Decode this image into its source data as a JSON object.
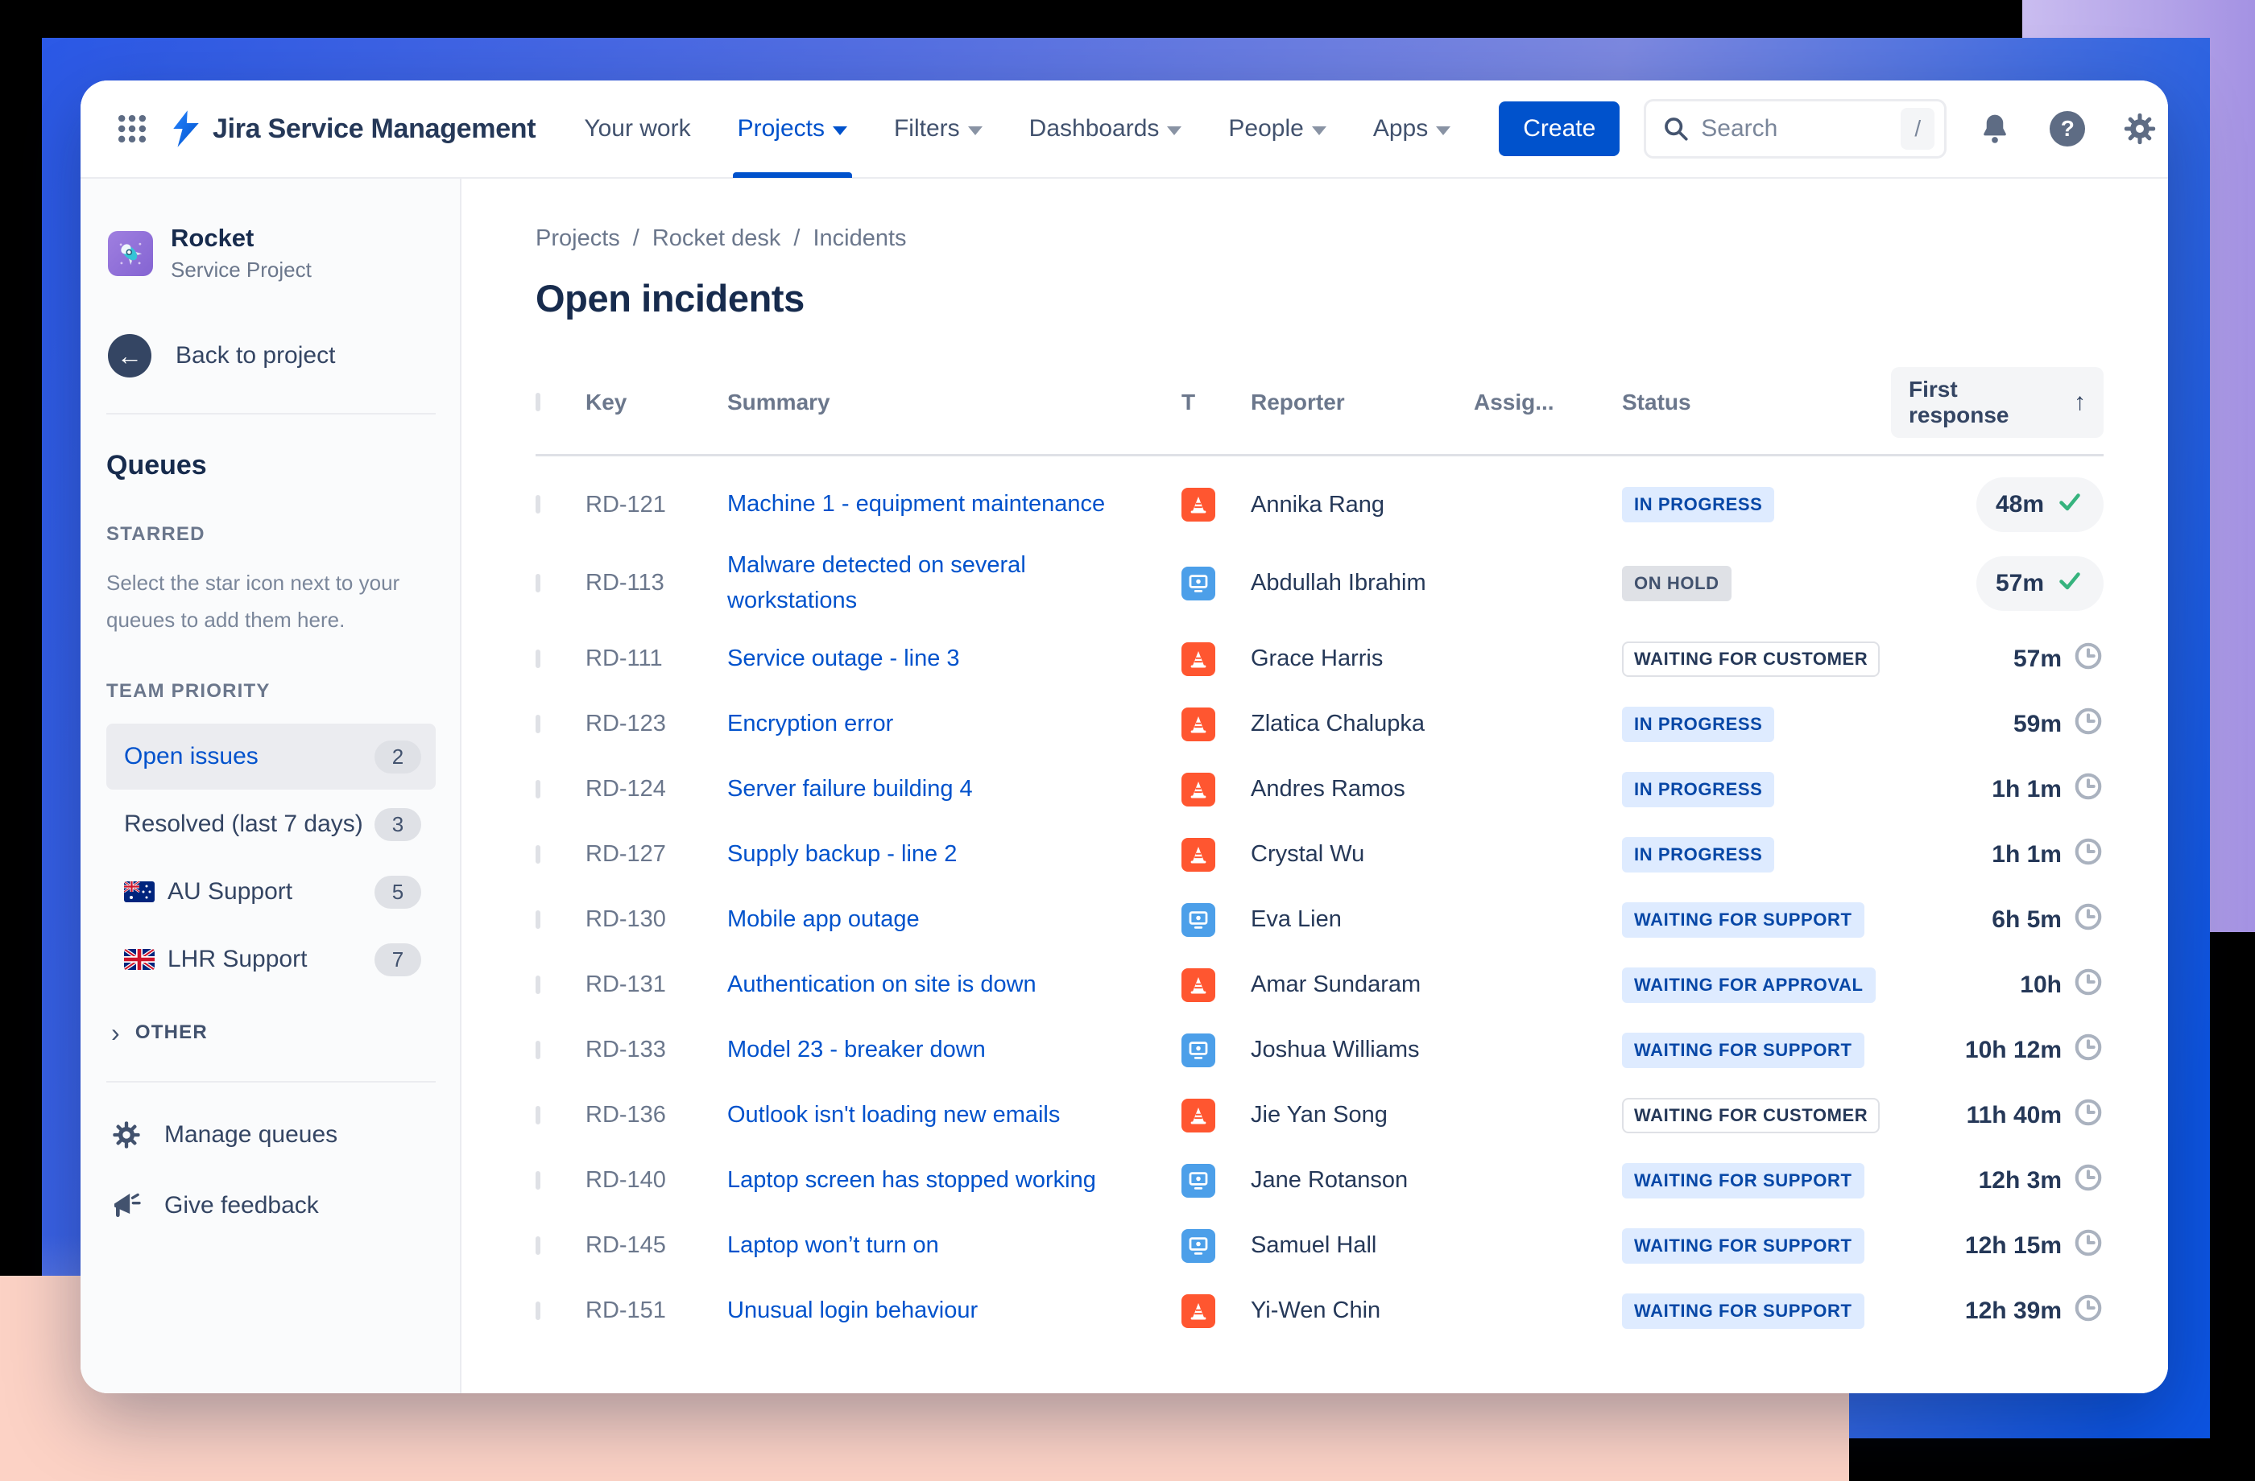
{
  "nav": {
    "logo_text": "Jira Service Management",
    "items": [
      {
        "label": "Your work",
        "has_caret": false,
        "active": false
      },
      {
        "label": "Projects",
        "has_caret": true,
        "active": true
      },
      {
        "label": "Filters",
        "has_caret": true,
        "active": false
      },
      {
        "label": "Dashboards",
        "has_caret": true,
        "active": false
      },
      {
        "label": "People",
        "has_caret": true,
        "active": false
      },
      {
        "label": "Apps",
        "has_caret": true,
        "active": false
      }
    ],
    "create_label": "Create",
    "search_placeholder": "Search",
    "search_shortcut": "/",
    "help_glyph": "?"
  },
  "sidebar": {
    "project_name": "Rocket",
    "project_type": "Service Project",
    "back_label": "Back to project",
    "back_arrow": "←",
    "queues_title": "Queues",
    "starred_title": "STARRED",
    "starred_hint": "Select the star icon next to your queues to add them here.",
    "team_priority_title": "TEAM PRIORITY",
    "queues": [
      {
        "label": "Open issues",
        "count": "2",
        "active": true,
        "flag": null
      },
      {
        "label": "Resolved (last 7 days)",
        "count": "3",
        "active": false,
        "flag": null
      },
      {
        "label": "AU Support",
        "count": "5",
        "active": false,
        "flag": "australia"
      },
      {
        "label": "LHR Support",
        "count": "7",
        "active": false,
        "flag": "united-kingdom"
      }
    ],
    "other_chevron": "›",
    "other_label": "OTHER",
    "manage_label": "Manage queues",
    "feedback_label": "Give feedback"
  },
  "main": {
    "breadcrumb": [
      "Projects",
      "Rocket desk",
      "Incidents"
    ],
    "title": "Open incidents",
    "columns": {
      "key": "Key",
      "summary": "Summary",
      "type": "T",
      "reporter": "Reporter",
      "assignee": "Assig...",
      "status": "Status",
      "first_response": "First response",
      "sort_arrow": "↑"
    },
    "rows": [
      {
        "key": "RD-121",
        "summary": "Machine 1 - equipment maintenance",
        "type": "incident",
        "reporter": "Annika Rang",
        "status": "IN PROGRESS",
        "status_variant": "blue",
        "response": "48m",
        "response_icon": "check",
        "response_pill": true
      },
      {
        "key": "RD-113",
        "summary": "Malware detected on several workstations",
        "type": "request",
        "reporter": "Abdullah Ibrahim",
        "status": "ON HOLD",
        "status_variant": "gray",
        "response": "57m",
        "response_icon": "check",
        "response_pill": true
      },
      {
        "key": "RD-111",
        "summary": "Service outage - line 3",
        "type": "incident",
        "reporter": "Grace Harris",
        "status": "WAITING FOR CUSTOMER",
        "status_variant": "outline",
        "response": "57m",
        "response_icon": "clock",
        "response_pill": false
      },
      {
        "key": "RD-123",
        "summary": "Encryption error",
        "type": "incident",
        "reporter": "Zlatica Chalupka",
        "status": "IN PROGRESS",
        "status_variant": "blue",
        "response": "59m",
        "response_icon": "clock",
        "response_pill": false
      },
      {
        "key": "RD-124",
        "summary": "Server failure building 4",
        "type": "incident",
        "reporter": "Andres Ramos",
        "status": "IN PROGRESS",
        "status_variant": "blue",
        "response": "1h 1m",
        "response_icon": "clock",
        "response_pill": false
      },
      {
        "key": "RD-127",
        "summary": "Supply backup - line 2",
        "type": "incident",
        "reporter": "Crystal Wu",
        "status": "IN PROGRESS",
        "status_variant": "blue",
        "response": "1h 1m",
        "response_icon": "clock",
        "response_pill": false
      },
      {
        "key": "RD-130",
        "summary": "Mobile app outage",
        "type": "request",
        "reporter": "Eva Lien",
        "status": "WAITING FOR SUPPORT",
        "status_variant": "blue",
        "response": "6h 5m",
        "response_icon": "clock",
        "response_pill": false
      },
      {
        "key": "RD-131",
        "summary": "Authentication on site is down",
        "type": "incident",
        "reporter": "Amar Sundaram",
        "status": "WAITING FOR APPROVAL",
        "status_variant": "blue",
        "response": "10h",
        "response_icon": "clock",
        "response_pill": false
      },
      {
        "key": "RD-133",
        "summary": "Model 23 - breaker down",
        "type": "request",
        "reporter": "Joshua Williams",
        "status": "WAITING FOR SUPPORT",
        "status_variant": "blue",
        "response": "10h 12m",
        "response_icon": "clock",
        "response_pill": false
      },
      {
        "key": "RD-136",
        "summary": "Outlook isn't loading new emails",
        "type": "incident",
        "reporter": "Jie Yan Song",
        "status": "WAITING FOR CUSTOMER",
        "status_variant": "outline",
        "response": "11h 40m",
        "response_icon": "clock",
        "response_pill": false
      },
      {
        "key": "RD-140",
        "summary": "Laptop screen has stopped working",
        "type": "request",
        "reporter": "Jane Rotanson",
        "status": "WAITING FOR SUPPORT",
        "status_variant": "blue",
        "response": "12h 3m",
        "response_icon": "clock",
        "response_pill": false
      },
      {
        "key": "RD-145",
        "summary": "Laptop won’t turn on",
        "type": "request",
        "reporter": "Samuel Hall",
        "status": "WAITING FOR SUPPORT",
        "status_variant": "blue",
        "response": "12h 15m",
        "response_icon": "clock",
        "response_pill": false
      },
      {
        "key": "RD-151",
        "summary": "Unusual login behaviour",
        "type": "incident",
        "reporter": "Yi-Wen Chin",
        "status": "WAITING FOR SUPPORT",
        "status_variant": "blue",
        "response": "12h 39m",
        "response_icon": "clock",
        "response_pill": false
      }
    ]
  },
  "colors": {
    "brand_blue": "#0052cc",
    "incident_red": "#ff5630",
    "request_blue": "#4c9fe9",
    "status_blue_bg": "#deebff",
    "status_blue_text": "#0747a6",
    "status_gray_bg": "#dfe1e6",
    "sla_met_green": "#36b37e",
    "backdrop_blue": "#2b59e6",
    "backdrop_purple": "#a492e3",
    "backdrop_pink": "#fcd2c5"
  }
}
